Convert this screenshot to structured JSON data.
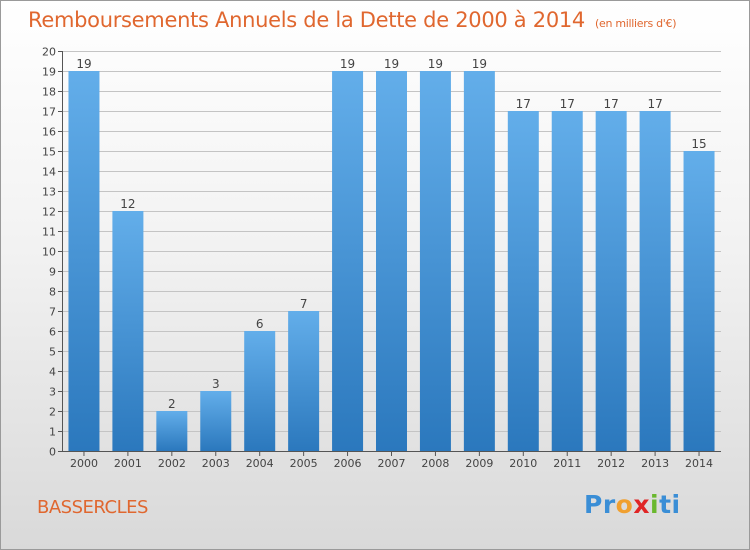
{
  "chart_data": {
    "type": "bar",
    "title": "Remboursements Annuels de la Dette de 2000 à 2014",
    "subtitle": "(en milliers d'€)",
    "categories": [
      "2000",
      "2001",
      "2002",
      "2003",
      "2004",
      "2005",
      "2006",
      "2007",
      "2008",
      "2009",
      "2010",
      "2011",
      "2012",
      "2013",
      "2014"
    ],
    "values": [
      19,
      12,
      2,
      3,
      6,
      7,
      19,
      19,
      19,
      19,
      17,
      17,
      17,
      17,
      15
    ],
    "ylim": [
      0,
      20
    ],
    "yticks": [
      0,
      1,
      2,
      3,
      4,
      5,
      6,
      7,
      8,
      9,
      10,
      11,
      12,
      13,
      14,
      15,
      16,
      17,
      18,
      19,
      20
    ],
    "xlabel": "",
    "ylabel": "",
    "grid": true
  },
  "commune": "BASSERCLES",
  "logo": {
    "letters": [
      "P",
      "r",
      "o",
      "x",
      "i",
      "t",
      "i"
    ],
    "colors": [
      "#3a8ed6",
      "#3a8ed6",
      "#f0a030",
      "#e02525",
      "#6ab82e",
      "#3a8ed6",
      "#3a8ed6"
    ]
  },
  "colors": {
    "bar_light": "#63aeea",
    "bar_dark": "#2b78bd",
    "accent": "#e0672f"
  }
}
